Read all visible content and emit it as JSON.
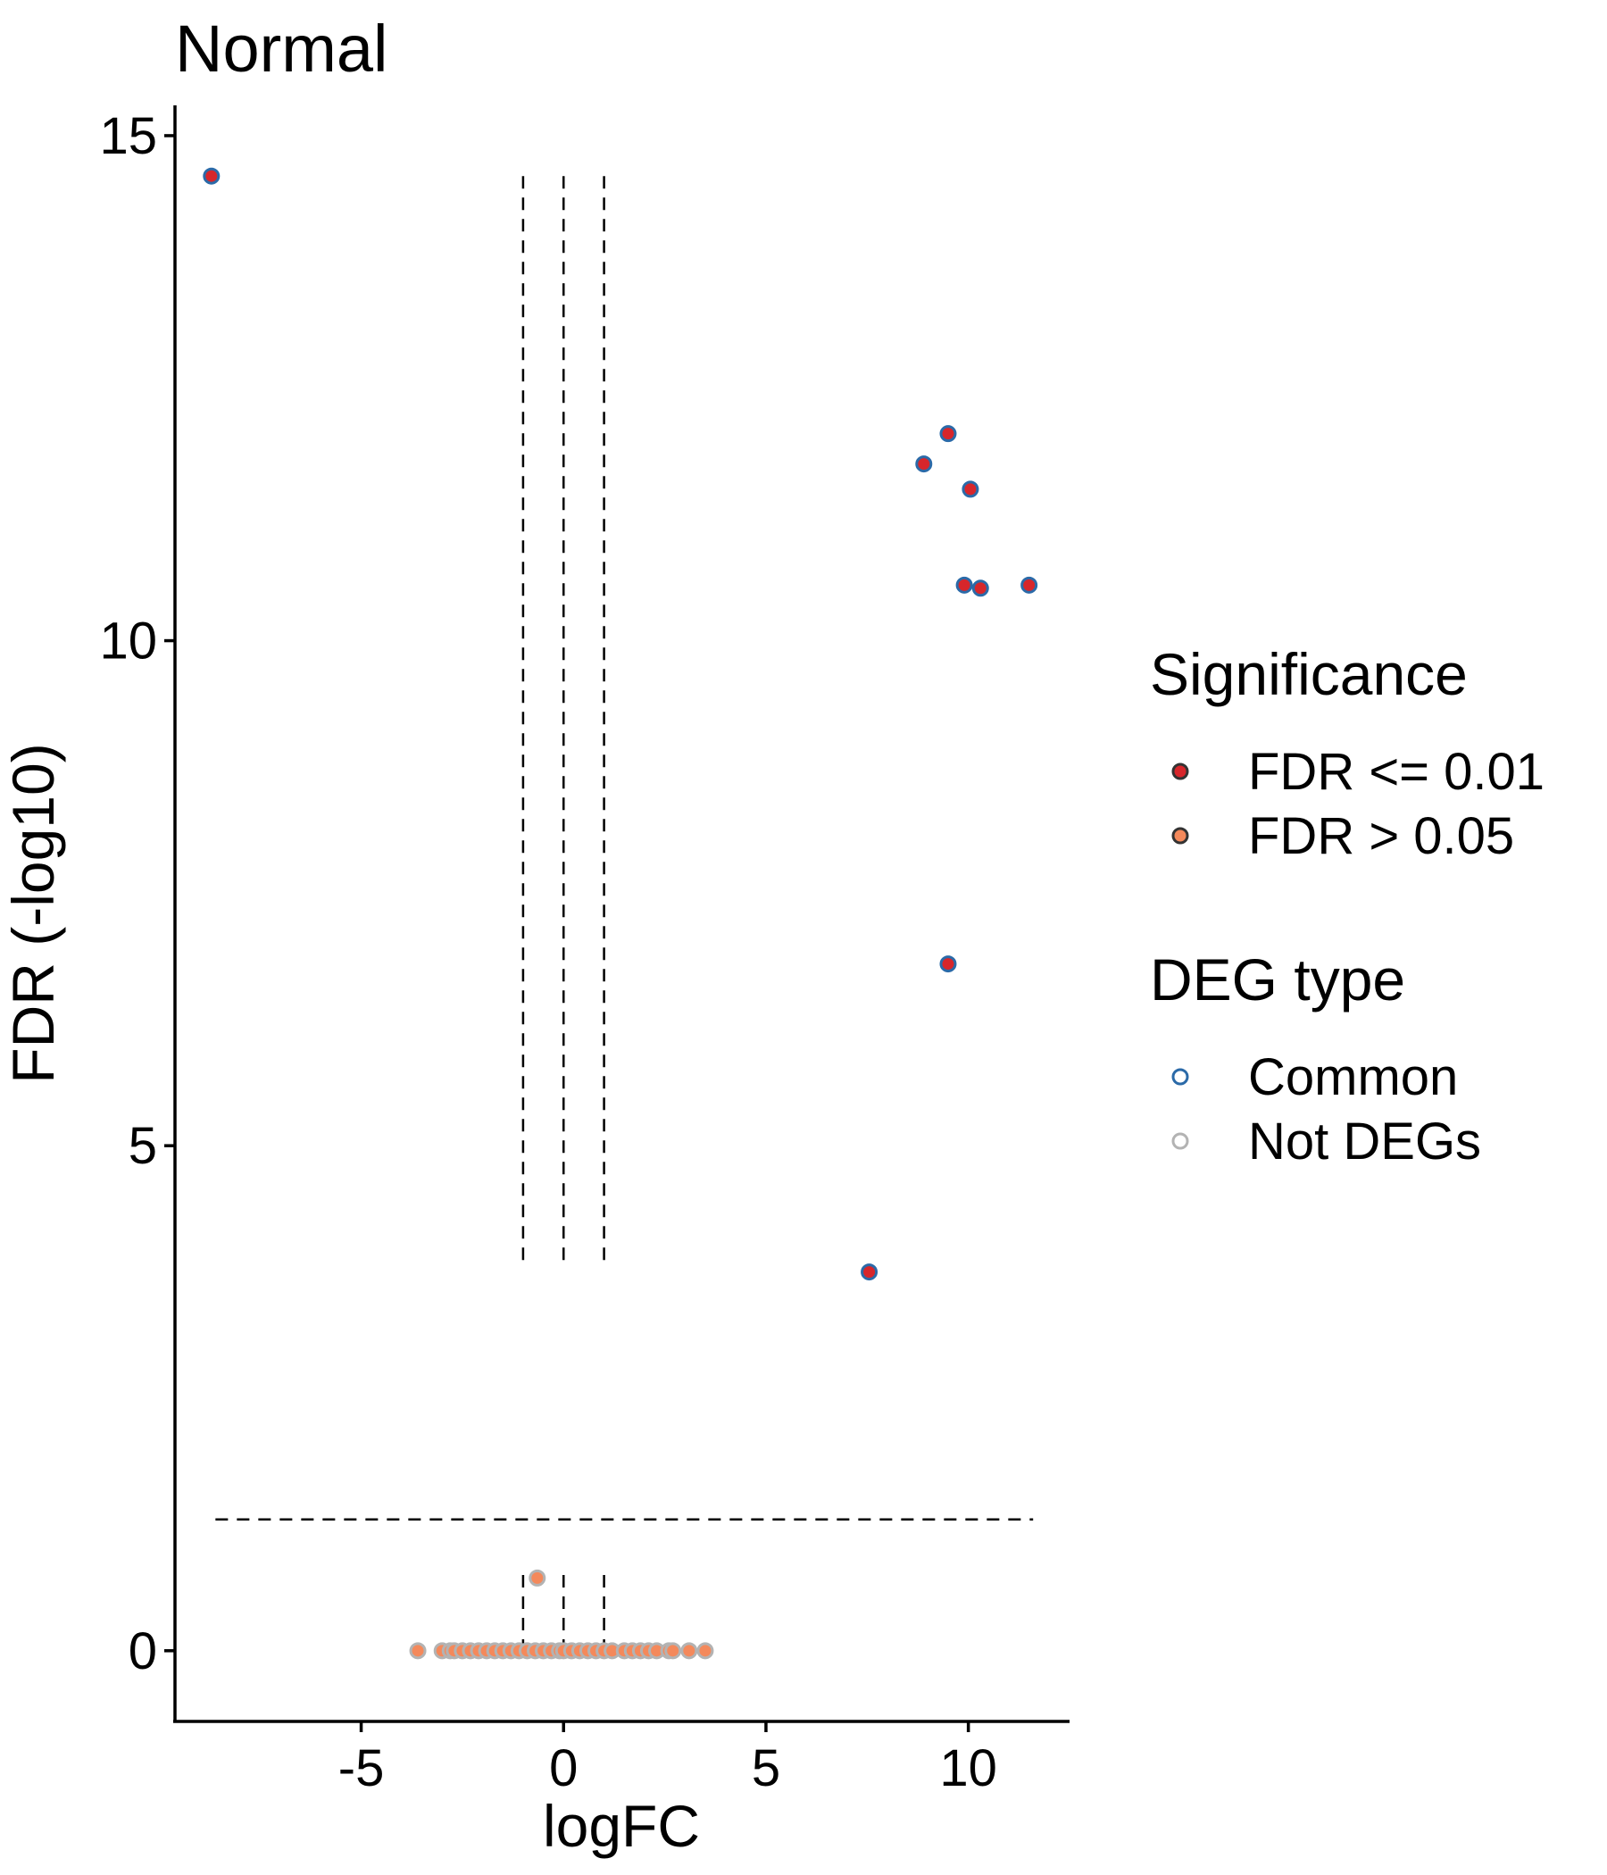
{
  "chart_data": {
    "type": "scatter",
    "title": "Normal",
    "xlabel": "logFC",
    "ylabel": "FDR (-log10)",
    "xlim": [
      -9.6,
      12.5
    ],
    "ylim": [
      -0.7,
      15.3
    ],
    "xticks": [
      -5,
      0,
      5,
      10
    ],
    "yticks": [
      0,
      5,
      10,
      15
    ],
    "xtick_labels": [
      "-5",
      "0",
      "5",
      "10"
    ],
    "ytick_labels": [
      "0",
      "5",
      "10",
      "15"
    ],
    "grid": false,
    "reference_lines": {
      "vertical_x": [
        -1,
        0,
        1
      ],
      "upper_vertical_y_range": [
        3.8,
        14.6
      ],
      "lower_vertical_y_range": [
        0,
        0.75
      ],
      "horizontal_y": 1.3,
      "horizontal_x_range": [
        -8.6,
        11.6
      ]
    },
    "legend": {
      "placement": "right",
      "groups": [
        {
          "title": "Significance",
          "items": [
            {
              "label": "FDR <= 0.01",
              "fill": "#d7262b",
              "stroke": "#333333"
            },
            {
              "label": "FDR > 0.05",
              "fill": "#f4895b",
              "stroke": "#333333"
            }
          ]
        },
        {
          "title": "DEG type",
          "items": [
            {
              "label": "Common",
              "fill": "none",
              "stroke": "#2b6aa8"
            },
            {
              "label": "Not DEGs",
              "fill": "none",
              "stroke": "#b3b3b3"
            }
          ]
        }
      ]
    },
    "colors": {
      "FDR <= 0.01": "#d7262b",
      "FDR > 0.05": "#f4895b",
      "Common": "#2b6aa8",
      "Not DEGs": "#b3b3b3"
    },
    "series": [
      {
        "name": "FDR <= 0.01",
        "deg_type": "Common",
        "points": [
          {
            "x": -8.7,
            "y": 14.6
          },
          {
            "x": 9.5,
            "y": 12.05
          },
          {
            "x": 8.9,
            "y": 11.75
          },
          {
            "x": 10.05,
            "y": 11.5
          },
          {
            "x": 9.9,
            "y": 10.55
          },
          {
            "x": 10.3,
            "y": 10.52
          },
          {
            "x": 11.5,
            "y": 10.55
          },
          {
            "x": 9.5,
            "y": 6.8
          },
          {
            "x": 7.55,
            "y": 3.75
          }
        ]
      },
      {
        "name": "FDR > 0.05",
        "deg_type": "Not DEGs",
        "points": [
          {
            "x": -0.65,
            "y": 0.72
          },
          {
            "x": -3.6,
            "y": 0
          },
          {
            "x": -3.0,
            "y": 0
          },
          {
            "x": -2.8,
            "y": 0
          },
          {
            "x": -2.7,
            "y": 0
          },
          {
            "x": -2.5,
            "y": 0
          },
          {
            "x": -2.3,
            "y": 0
          },
          {
            "x": -2.1,
            "y": 0
          },
          {
            "x": -1.9,
            "y": 0
          },
          {
            "x": -1.7,
            "y": 0
          },
          {
            "x": -1.5,
            "y": 0
          },
          {
            "x": -1.3,
            "y": 0
          },
          {
            "x": -1.1,
            "y": 0
          },
          {
            "x": -0.9,
            "y": 0
          },
          {
            "x": -0.7,
            "y": 0
          },
          {
            "x": -0.5,
            "y": 0
          },
          {
            "x": -0.3,
            "y": 0
          },
          {
            "x": -0.1,
            "y": 0
          },
          {
            "x": 0.0,
            "y": 0
          },
          {
            "x": 0.2,
            "y": 0
          },
          {
            "x": 0.4,
            "y": 0
          },
          {
            "x": 0.6,
            "y": 0
          },
          {
            "x": 0.8,
            "y": 0
          },
          {
            "x": 1.0,
            "y": 0
          },
          {
            "x": 1.2,
            "y": 0
          },
          {
            "x": 1.5,
            "y": 0
          },
          {
            "x": 1.7,
            "y": 0
          },
          {
            "x": 1.9,
            "y": 0
          },
          {
            "x": 2.1,
            "y": 0
          },
          {
            "x": 2.3,
            "y": 0
          },
          {
            "x": 2.6,
            "y": 0
          },
          {
            "x": 2.7,
            "y": 0
          },
          {
            "x": 3.1,
            "y": 0
          },
          {
            "x": 3.5,
            "y": 0
          }
        ]
      }
    ]
  }
}
